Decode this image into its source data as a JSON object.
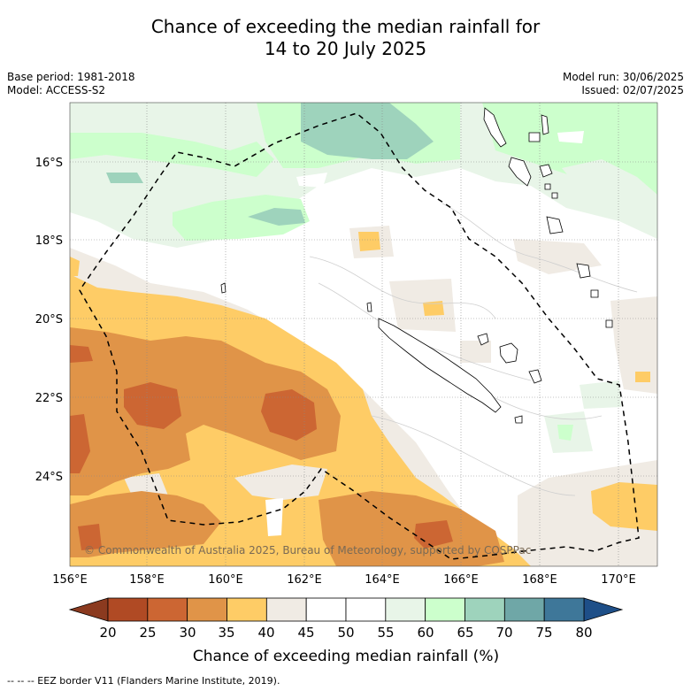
{
  "title_line1": "Chance of exceeding the median rainfall for",
  "title_line2": "14 to 20 July 2025",
  "base_period": "Base period: 1981-2018",
  "model": "Model: ACCESS-S2",
  "model_run": "Model run: 30/06/2025",
  "issued": "Issued: 02/07/2025",
  "copyright": "© Commonwealth of Australia 2025, Bureau of Meteorology, supported by COSPPac",
  "lat_labels": [
    "16°S",
    "18°S",
    "20°S",
    "22°S",
    "24°S"
  ],
  "lon_labels": [
    "156°E",
    "158°E",
    "160°E",
    "162°E",
    "164°E",
    "166°E",
    "168°E",
    "170°E"
  ],
  "colorbar": {
    "title": "Chance of exceeding median rainfall (%)",
    "ticks": [
      "20",
      "25",
      "30",
      "35",
      "40",
      "45",
      "50",
      "55",
      "60",
      "65",
      "70",
      "75",
      "80"
    ],
    "colors": [
      "#8b3a1f",
      "#b04a24",
      "#cc6633",
      "#e09448",
      "#fecc66",
      "#f0ebe4",
      "#ffffff",
      "#ffffff",
      "#e8f5e8",
      "#ccffcc",
      "#9ed3bc",
      "#6fa7a7",
      "#3e7799",
      "#1e4f88"
    ]
  },
  "eez_note": "--  --  -- EEZ border V11 (Flanders Marine Institute, 2019)."
}
